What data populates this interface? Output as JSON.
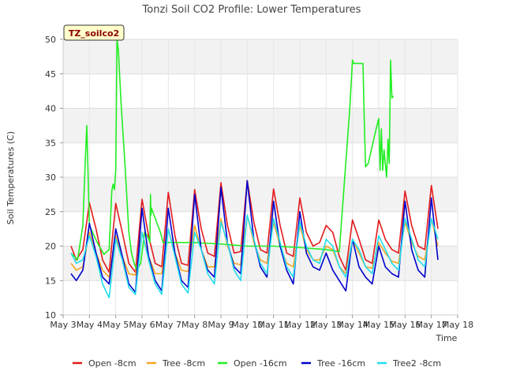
{
  "chart_data": {
    "type": "line",
    "title": "Tonzi Soil CO2 Profile: Lower Temperatures",
    "xlabel": "Time",
    "ylabel": "Soil Temperatures (C)",
    "badge": "TZ_soilco2",
    "xlim": [
      3,
      18
    ],
    "ylim": [
      10,
      50
    ],
    "x_ticks": [
      3,
      4,
      5,
      6,
      7,
      8,
      9,
      10,
      11,
      12,
      13,
      14,
      15,
      16,
      17,
      18
    ],
    "x_tick_labels": [
      "May 3",
      "May 4",
      "May 5",
      "May 6",
      "May 7",
      "May 8",
      "May 9",
      "May 10",
      "May 11",
      "May 12",
      "May 13",
      "May 14",
      "May 15",
      "May 16",
      "May 17",
      "May 18"
    ],
    "y_ticks": [
      10,
      15,
      20,
      25,
      30,
      35,
      40,
      45,
      50
    ],
    "grid": true,
    "legend_position": "bottom",
    "series": [
      {
        "name": "Open -8cm",
        "color": "#e31a1c",
        "x": [
          3.3,
          3.5,
          3.75,
          4.0,
          4.25,
          4.5,
          4.75,
          5.0,
          5.25,
          5.5,
          5.75,
          6.0,
          6.25,
          6.5,
          6.75,
          7.0,
          7.25,
          7.5,
          7.75,
          8.0,
          8.25,
          8.5,
          8.75,
          9.0,
          9.25,
          9.5,
          9.75,
          10.0,
          10.25,
          10.5,
          10.75,
          11.0,
          11.25,
          11.5,
          11.75,
          12.0,
          12.25,
          12.5,
          12.75,
          13.0,
          13.25,
          13.5,
          13.75,
          14.0,
          14.25,
          14.5,
          14.75,
          15.0,
          15.25,
          15.5,
          15.75,
          16.0,
          16.25,
          16.5,
          16.75,
          17.0,
          17.25
        ],
        "y": [
          20.0,
          18.0,
          19.5,
          26.3,
          22.5,
          18.0,
          16.2,
          26.2,
          22.0,
          17.5,
          16.2,
          26.8,
          21.5,
          17.5,
          17.0,
          27.8,
          21.5,
          17.5,
          17.2,
          28.2,
          22.5,
          19.0,
          18.5,
          29.2,
          23.0,
          19.0,
          19.2,
          29.5,
          23.5,
          19.5,
          19.0,
          28.3,
          23.0,
          19.0,
          18.5,
          27.0,
          22.0,
          20.0,
          20.5,
          23.0,
          22.0,
          18.5,
          16.5,
          23.8,
          21.0,
          18.0,
          17.5,
          23.8,
          21.0,
          19.5,
          19.0,
          28.0,
          23.0,
          20.0,
          19.5,
          28.8,
          22.5
        ]
      },
      {
        "name": "Tree -8cm",
        "color": "#f5a623",
        "x": [
          3.3,
          3.5,
          3.75,
          4.0,
          4.25,
          4.5,
          4.75,
          5.0,
          5.25,
          5.5,
          5.75,
          6.0,
          6.25,
          6.5,
          6.75,
          7.0,
          7.25,
          7.5,
          7.75,
          8.0,
          8.25,
          8.5,
          8.75,
          9.0,
          9.25,
          9.5,
          9.75,
          10.0,
          10.25,
          10.5,
          10.75,
          11.0,
          11.25,
          11.5,
          11.75,
          12.0,
          12.25,
          12.5,
          12.75,
          13.0,
          13.25,
          13.5,
          13.75,
          14.0,
          14.25,
          14.5,
          14.75,
          15.0,
          15.25,
          15.5,
          15.75,
          16.0,
          16.25,
          16.5,
          16.75,
          17.0,
          17.25
        ],
        "y": [
          17.5,
          16.5,
          17.0,
          22.0,
          19.0,
          16.5,
          15.5,
          21.5,
          18.5,
          16.0,
          15.8,
          22.0,
          18.5,
          16.0,
          16.0,
          22.5,
          19.0,
          16.5,
          16.3,
          23.0,
          19.5,
          17.0,
          17.0,
          24.0,
          20.0,
          17.5,
          17.3,
          24.5,
          20.5,
          18.0,
          17.5,
          23.5,
          20.0,
          17.5,
          17.0,
          23.0,
          19.5,
          18.0,
          18.0,
          20.0,
          19.5,
          17.0,
          16.0,
          21.0,
          19.0,
          17.0,
          16.8,
          20.5,
          19.0,
          17.8,
          17.5,
          23.5,
          20.5,
          18.5,
          18.0,
          24.0,
          20.0
        ]
      },
      {
        "name": "Open -16cm",
        "color": "#22ee22",
        "x": [
          3.3,
          3.55,
          3.75,
          3.85,
          3.9,
          3.95,
          4.0,
          4.3,
          4.55,
          4.75,
          4.85,
          4.9,
          4.95,
          5.0,
          5.05,
          5.1,
          5.2,
          5.35,
          5.5,
          5.6,
          5.7,
          5.8,
          5.95,
          6.1,
          6.2,
          6.3,
          6.32,
          6.34,
          6.36,
          6.5,
          6.7,
          6.8,
          6.9,
          7.2,
          8.0,
          9.0,
          10.0,
          11.0,
          12.0,
          13.0,
          13.5,
          13.9,
          14.0,
          14.05,
          14.4,
          14.45,
          14.5,
          14.6,
          14.9,
          15.0,
          15.05,
          15.1,
          15.15,
          15.2,
          15.25,
          15.3,
          15.35,
          15.4,
          15.45,
          15.5,
          15.55
        ],
        "y": [
          19.0,
          18.0,
          23.0,
          33.0,
          37.5,
          30.0,
          23.0,
          20.5,
          18.8,
          19.5,
          28.0,
          29.0,
          28.2,
          31.0,
          50.0,
          48.5,
          41.0,
          32.0,
          22.0,
          19.0,
          17.5,
          16.5,
          17.5,
          22.0,
          21.5,
          20.5,
          27.5,
          24.5,
          25.5,
          24.0,
          22.0,
          20.5,
          20.5,
          20.5,
          20.5,
          20.3,
          20.0,
          20.0,
          19.8,
          19.5,
          19.2,
          40.0,
          47.0,
          46.5,
          46.5,
          38.0,
          31.5,
          32.0,
          37.0,
          38.5,
          31.0,
          37.0,
          31.0,
          34.0,
          32.0,
          30.0,
          35.5,
          32.0,
          47.0,
          41.5,
          41.8
        ]
      },
      {
        "name": "Tree -16cm",
        "color": "#0000cc",
        "x": [
          3.3,
          3.5,
          3.75,
          4.0,
          4.25,
          4.5,
          4.75,
          5.0,
          5.25,
          5.5,
          5.75,
          6.0,
          6.25,
          6.5,
          6.75,
          7.0,
          7.25,
          7.5,
          7.75,
          8.0,
          8.25,
          8.5,
          8.75,
          9.0,
          9.25,
          9.5,
          9.75,
          10.0,
          10.25,
          10.5,
          10.75,
          11.0,
          11.25,
          11.5,
          11.75,
          12.0,
          12.25,
          12.5,
          12.75,
          13.0,
          13.25,
          13.5,
          13.75,
          14.0,
          14.25,
          14.5,
          14.75,
          15.0,
          15.25,
          15.5,
          15.75,
          16.0,
          16.25,
          16.5,
          16.75,
          17.0,
          17.25
        ],
        "y": [
          16.0,
          15.0,
          16.5,
          23.3,
          19.0,
          15.5,
          14.5,
          22.5,
          18.5,
          14.5,
          13.3,
          25.5,
          18.5,
          15.0,
          13.5,
          25.5,
          19.0,
          15.0,
          14.0,
          27.5,
          19.5,
          16.5,
          15.5,
          28.5,
          20.5,
          17.0,
          16.0,
          29.5,
          21.0,
          17.0,
          15.5,
          26.5,
          20.0,
          16.5,
          14.5,
          25.0,
          19.0,
          17.0,
          16.5,
          19.0,
          16.5,
          15.0,
          13.5,
          21.0,
          17.0,
          15.5,
          14.5,
          20.0,
          17.0,
          16.0,
          15.5,
          26.5,
          19.5,
          16.5,
          15.5,
          27.0,
          18.0
        ]
      },
      {
        "name": "Tree2 -8cm",
        "color": "#22ddee",
        "x": [
          3.3,
          3.5,
          3.75,
          4.0,
          4.25,
          4.5,
          4.75,
          5.0,
          5.25,
          5.5,
          5.75,
          6.0,
          6.25,
          6.5,
          6.75,
          7.0,
          7.25,
          7.5,
          7.75,
          8.0,
          8.25,
          8.5,
          8.75,
          9.0,
          9.25,
          9.5,
          9.75,
          10.0,
          10.25,
          10.5,
          10.75,
          11.0,
          11.25,
          11.5,
          11.75,
          12.0,
          12.25,
          12.5,
          12.75,
          13.0,
          13.25,
          13.5,
          13.75,
          14.0,
          14.25,
          14.5,
          14.75,
          15.0,
          15.25,
          15.5,
          15.75,
          16.0,
          16.25,
          16.5,
          16.75,
          17.0,
          17.25
        ],
        "y": [
          19.0,
          17.5,
          18.0,
          21.5,
          18.5,
          14.5,
          12.5,
          21.0,
          18.0,
          14.0,
          13.0,
          22.0,
          18.0,
          14.5,
          13.0,
          22.5,
          18.5,
          14.5,
          13.2,
          22.0,
          19.5,
          16.0,
          14.5,
          23.5,
          20.5,
          16.5,
          15.0,
          24.5,
          21.0,
          17.5,
          16.0,
          24.0,
          20.5,
          17.0,
          15.5,
          23.5,
          20.0,
          18.0,
          17.5,
          21.0,
          20.0,
          17.0,
          15.5,
          21.0,
          19.5,
          17.0,
          16.0,
          21.5,
          19.5,
          17.5,
          16.5,
          24.0,
          21.0,
          18.0,
          17.0,
          24.0,
          21.0
        ]
      }
    ]
  }
}
